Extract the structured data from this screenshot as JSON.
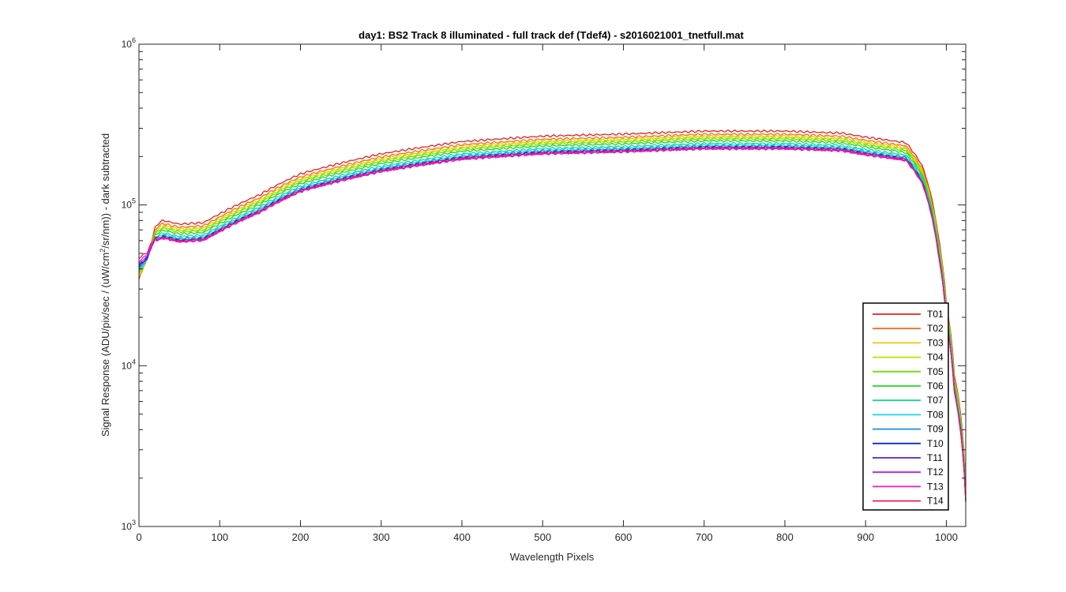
{
  "chart_data": {
    "type": "line",
    "title": "day1: BS2  Track 8 illuminated - full track def (Tdef4) - s2016021001_tnetfull.mat",
    "xlabel": "Wavelength Pixels",
    "ylabel_pre": "Signal Response (ADU/pix/sec / (uW/cm",
    "ylabel_sup": "2",
    "ylabel_post": "/sr/nm)) - dark subtracted",
    "xlim": [
      0,
      1024
    ],
    "ylim": [
      1000,
      1000000
    ],
    "yscale": "log",
    "grid": false,
    "legend_position": "bottom-right",
    "x_ticks": [
      0,
      100,
      200,
      300,
      400,
      500,
      600,
      700,
      800,
      900,
      1000
    ],
    "x_tick_labels": [
      "0",
      "100",
      "200",
      "300",
      "400",
      "500",
      "600",
      "700",
      "800",
      "900",
      "1000"
    ],
    "y_major_ticks": [
      {
        "value": 1000,
        "base": "10",
        "exp": "3"
      },
      {
        "value": 10000,
        "base": "10",
        "exp": "4"
      },
      {
        "value": 100000,
        "base": "10",
        "exp": "5"
      },
      {
        "value": 1000000,
        "base": "10",
        "exp": "6"
      }
    ],
    "x": [
      0,
      10,
      20,
      30,
      50,
      80,
      100,
      150,
      200,
      300,
      400,
      500,
      600,
      700,
      800,
      870,
      900,
      950,
      970,
      990,
      1000,
      1010,
      1024
    ],
    "base_profile": [
      0.6,
      0.7,
      0.95,
      1.0,
      0.95,
      0.97,
      1.1,
      1.45,
      1.95,
      2.6,
      3.1,
      3.35,
      3.45,
      3.6,
      3.6,
      3.5,
      3.3,
      3.05,
      2.2,
      0.8,
      0.3,
      0.11,
      0.023
    ],
    "series": [
      {
        "name": "T01",
        "color": "#e8211a",
        "scale": 80000
      },
      {
        "name": "T02",
        "color": "#f26d1f",
        "scale": 76500
      },
      {
        "name": "T03",
        "color": "#f0c800",
        "scale": 74500
      },
      {
        "name": "T04",
        "color": "#b8e000",
        "scale": 73000
      },
      {
        "name": "T05",
        "color": "#72e000",
        "scale": 71500
      },
      {
        "name": "T06",
        "color": "#1ed62a",
        "scale": 69500
      },
      {
        "name": "T07",
        "color": "#10d896",
        "scale": 67000
      },
      {
        "name": "T08",
        "color": "#14d4ee",
        "scale": 65500
      },
      {
        "name": "T09",
        "color": "#1a8ee8",
        "scale": 64500
      },
      {
        "name": "T10",
        "color": "#1228d0",
        "scale": 63500
      },
      {
        "name": "T11",
        "color": "#5a1ee0",
        "scale": 62500
      },
      {
        "name": "T12",
        "color": "#b01ee6",
        "scale": 62000
      },
      {
        "name": "T13",
        "color": "#ee18d2",
        "scale": 62200
      },
      {
        "name": "T14",
        "color": "#ee1a62",
        "scale": 63000
      }
    ]
  }
}
